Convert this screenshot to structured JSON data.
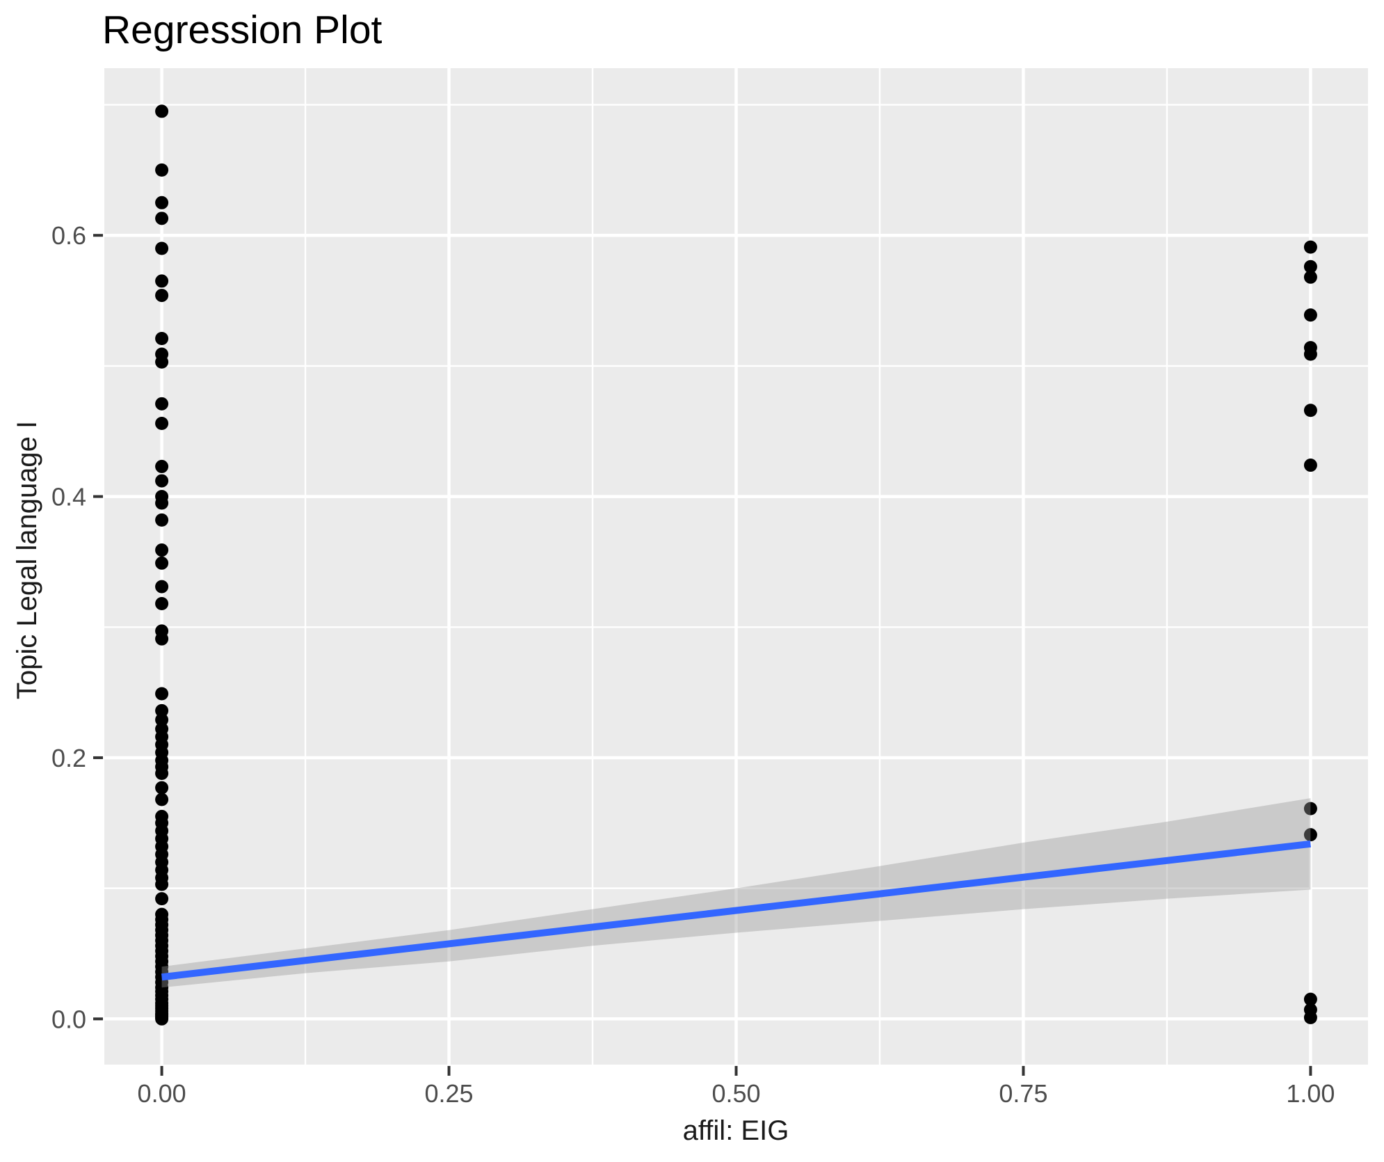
{
  "chart_data": {
    "type": "scatter",
    "title": "Regression Plot",
    "xlabel": "affil: EIG",
    "ylabel": "Topic Legal language I",
    "legend": "none",
    "grid": {
      "major": true,
      "minor": true
    },
    "xlim": [
      -0.05,
      1.05
    ],
    "ylim": [
      -0.035,
      0.728
    ],
    "x_ticks": [
      {
        "value": 0.0,
        "label": "0.00"
      },
      {
        "value": 0.25,
        "label": "0.25"
      },
      {
        "value": 0.5,
        "label": "0.50"
      },
      {
        "value": 0.75,
        "label": "0.75"
      },
      {
        "value": 1.0,
        "label": "1.00"
      }
    ],
    "y_ticks": [
      {
        "value": 0.0,
        "label": "0.0"
      },
      {
        "value": 0.2,
        "label": "0.2"
      },
      {
        "value": 0.4,
        "label": "0.4"
      },
      {
        "value": 0.6,
        "label": "0.6"
      }
    ],
    "x_minor_ticks": [
      0.125,
      0.375,
      0.625,
      0.875
    ],
    "y_minor_ticks": [
      0.1,
      0.3,
      0.5,
      0.7
    ],
    "series": [
      {
        "name": "affil = 0",
        "x": 0,
        "y_values": [
          0.695,
          0.65,
          0.625,
          0.613,
          0.59,
          0.565,
          0.554,
          0.521,
          0.509,
          0.503,
          0.471,
          0.456,
          0.423,
          0.412,
          0.4,
          0.395,
          0.382,
          0.359,
          0.349,
          0.331,
          0.318,
          0.297,
          0.291,
          0.249,
          0.236,
          0.229,
          0.222,
          0.216,
          0.21,
          0.204,
          0.198,
          0.193,
          0.188,
          0.177,
          0.168,
          0.155,
          0.15,
          0.144,
          0.138,
          0.132,
          0.126,
          0.12,
          0.114,
          0.108,
          0.103,
          0.092,
          0.08,
          0.076,
          0.072,
          0.068,
          0.064,
          0.06,
          0.056,
          0.052,
          0.048,
          0.044,
          0.04,
          0.036,
          0.032,
          0.028,
          0.024,
          0.021,
          0.018,
          0.015,
          0.012,
          0.01,
          0.008,
          0.006,
          0.004,
          0.003,
          0.002,
          0.001,
          0.0
        ]
      },
      {
        "name": "affil = 1",
        "x": 1,
        "y_values": [
          0.591,
          0.576,
          0.568,
          0.539,
          0.514,
          0.509,
          0.466,
          0.424,
          0.161,
          0.141,
          0.015,
          0.007,
          0.001
        ]
      }
    ],
    "regression_line": {
      "x": [
        0,
        1
      ],
      "y": [
        0.032,
        0.134
      ]
    },
    "confidence_band": {
      "x": [
        0,
        0.125,
        0.25,
        0.375,
        0.5,
        0.625,
        0.75,
        0.875,
        1
      ],
      "upper": [
        0.04,
        0.054,
        0.068,
        0.084,
        0.1,
        0.117,
        0.135,
        0.151,
        0.169
      ],
      "lower": [
        0.024,
        0.035,
        0.044,
        0.056,
        0.066,
        0.075,
        0.084,
        0.092,
        0.099
      ]
    },
    "colors": {
      "panel": "#EBEBEB",
      "grid": "#FFFFFF",
      "points": "#000000",
      "line": "#3366FF",
      "band": "#999999",
      "band_opacity": 0.4,
      "tick_text": "#4D4D4D",
      "tick_mark": "#333333",
      "axis_title_text": "#1A1A1A",
      "title_text": "#000000"
    }
  }
}
